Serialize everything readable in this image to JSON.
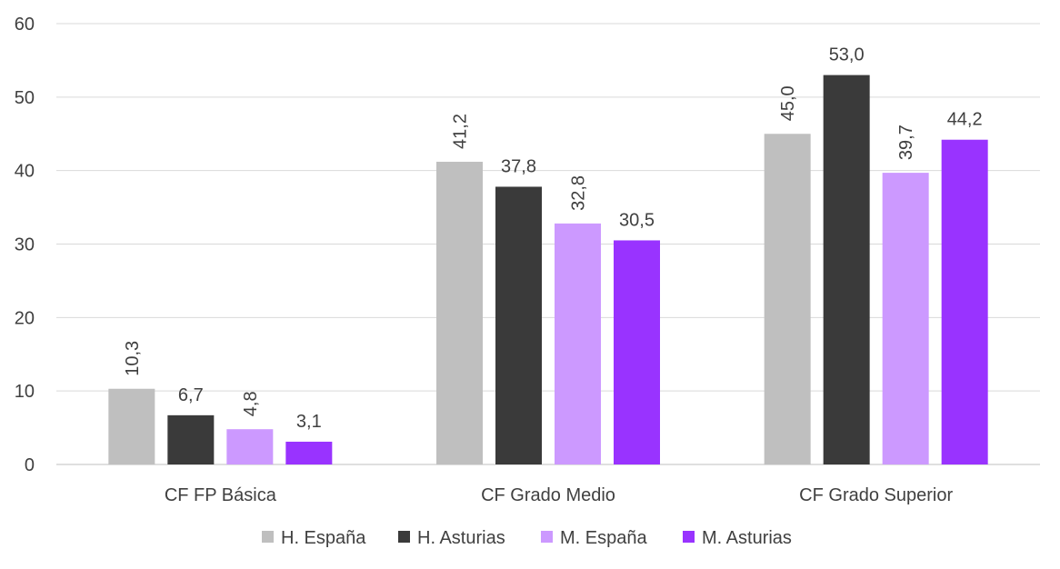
{
  "chart_data": {
    "type": "bar",
    "title": "",
    "xlabel": "",
    "ylabel": "",
    "ylim": [
      0,
      60
    ],
    "yticks": [
      0,
      10,
      20,
      30,
      40,
      50,
      60
    ],
    "grid": true,
    "legend_position": "bottom",
    "categories": [
      "CF FP Básica",
      "CF Grado Medio",
      "CF Grado Superior"
    ],
    "series": [
      {
        "name": "H. España",
        "color": "#bfbfbf",
        "values": [
          10.3,
          41.2,
          45.0
        ],
        "labels": [
          "10,3",
          "41,2",
          "45,0"
        ],
        "label_rotated": [
          true,
          true,
          true
        ]
      },
      {
        "name": "H. Asturias",
        "color": "#3a3a3a",
        "values": [
          6.7,
          37.8,
          53.0
        ],
        "labels": [
          "6,7",
          "37,8",
          "53,0"
        ],
        "label_rotated": [
          false,
          false,
          false
        ]
      },
      {
        "name": "M. España",
        "color": "#cc99ff",
        "values": [
          4.8,
          32.8,
          39.7
        ],
        "labels": [
          "4,8",
          "32,8",
          "39,7"
        ],
        "label_rotated": [
          true,
          true,
          true
        ]
      },
      {
        "name": "M. Asturias",
        "color": "#9933ff",
        "values": [
          3.1,
          30.5,
          44.2
        ],
        "labels": [
          "3,1",
          "30,5",
          "44,2"
        ],
        "label_rotated": [
          false,
          false,
          false
        ]
      }
    ]
  }
}
